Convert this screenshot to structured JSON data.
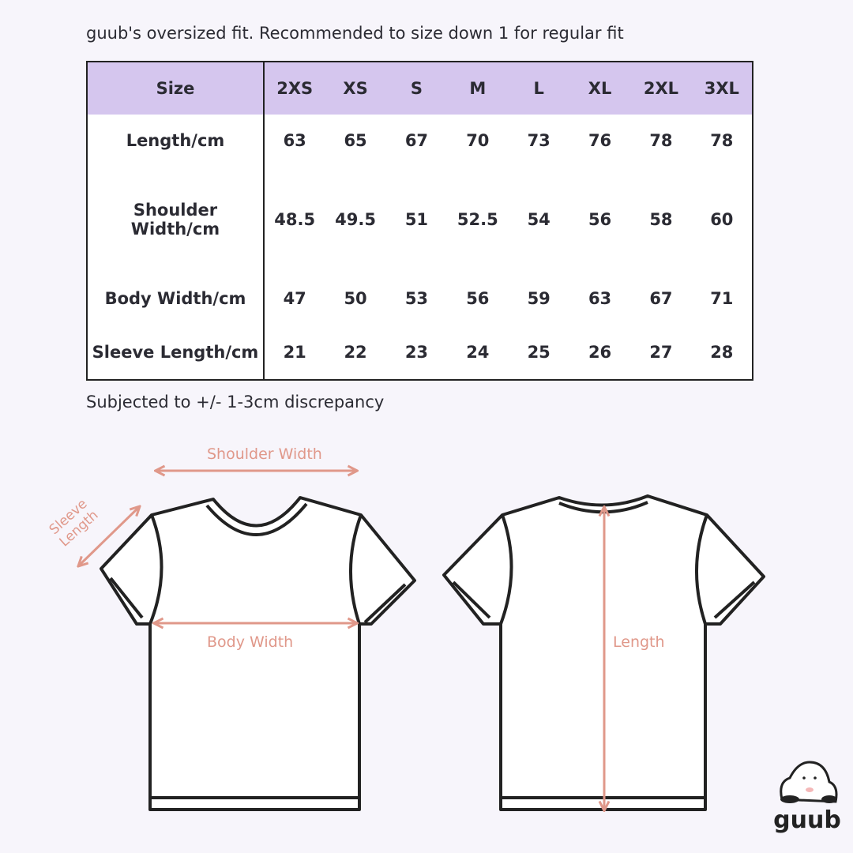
{
  "top_note": "guub's oversized fit. Recommended to size down 1 for regular fit",
  "bottom_note": "Subjected to +/- 1-3cm discrepancy",
  "table": {
    "headers": [
      "Size",
      "2XS",
      "XS",
      "S",
      "M",
      "L",
      "XL",
      "2XL",
      "3XL"
    ],
    "rows": [
      {
        "label": "Length/cm",
        "values": [
          "63",
          "65",
          "67",
          "70",
          "73",
          "76",
          "78",
          "78"
        ]
      },
      {
        "label": "Shoulder Width/cm",
        "values": [
          "48.5",
          "49.5",
          "51",
          "52.5",
          "54",
          "56",
          "58",
          "60"
        ]
      },
      {
        "label": "Body Width/cm",
        "values": [
          "47",
          "50",
          "53",
          "56",
          "59",
          "63",
          "67",
          "71"
        ]
      },
      {
        "label": "Sleeve Length/cm",
        "values": [
          "21",
          "22",
          "23",
          "24",
          "25",
          "26",
          "27",
          "28"
        ]
      }
    ]
  },
  "diagram": {
    "shoulder_width": "Shoulder Width",
    "sleeve_line1": "Sleeve",
    "sleeve_line2": "Length",
    "body_width": "Body Width",
    "length": "Length"
  },
  "logo": {
    "text": "guub"
  },
  "colors": {
    "header_bg": "#d5c6ee",
    "measure": "#e0988a",
    "background": "#f7f5fb"
  }
}
